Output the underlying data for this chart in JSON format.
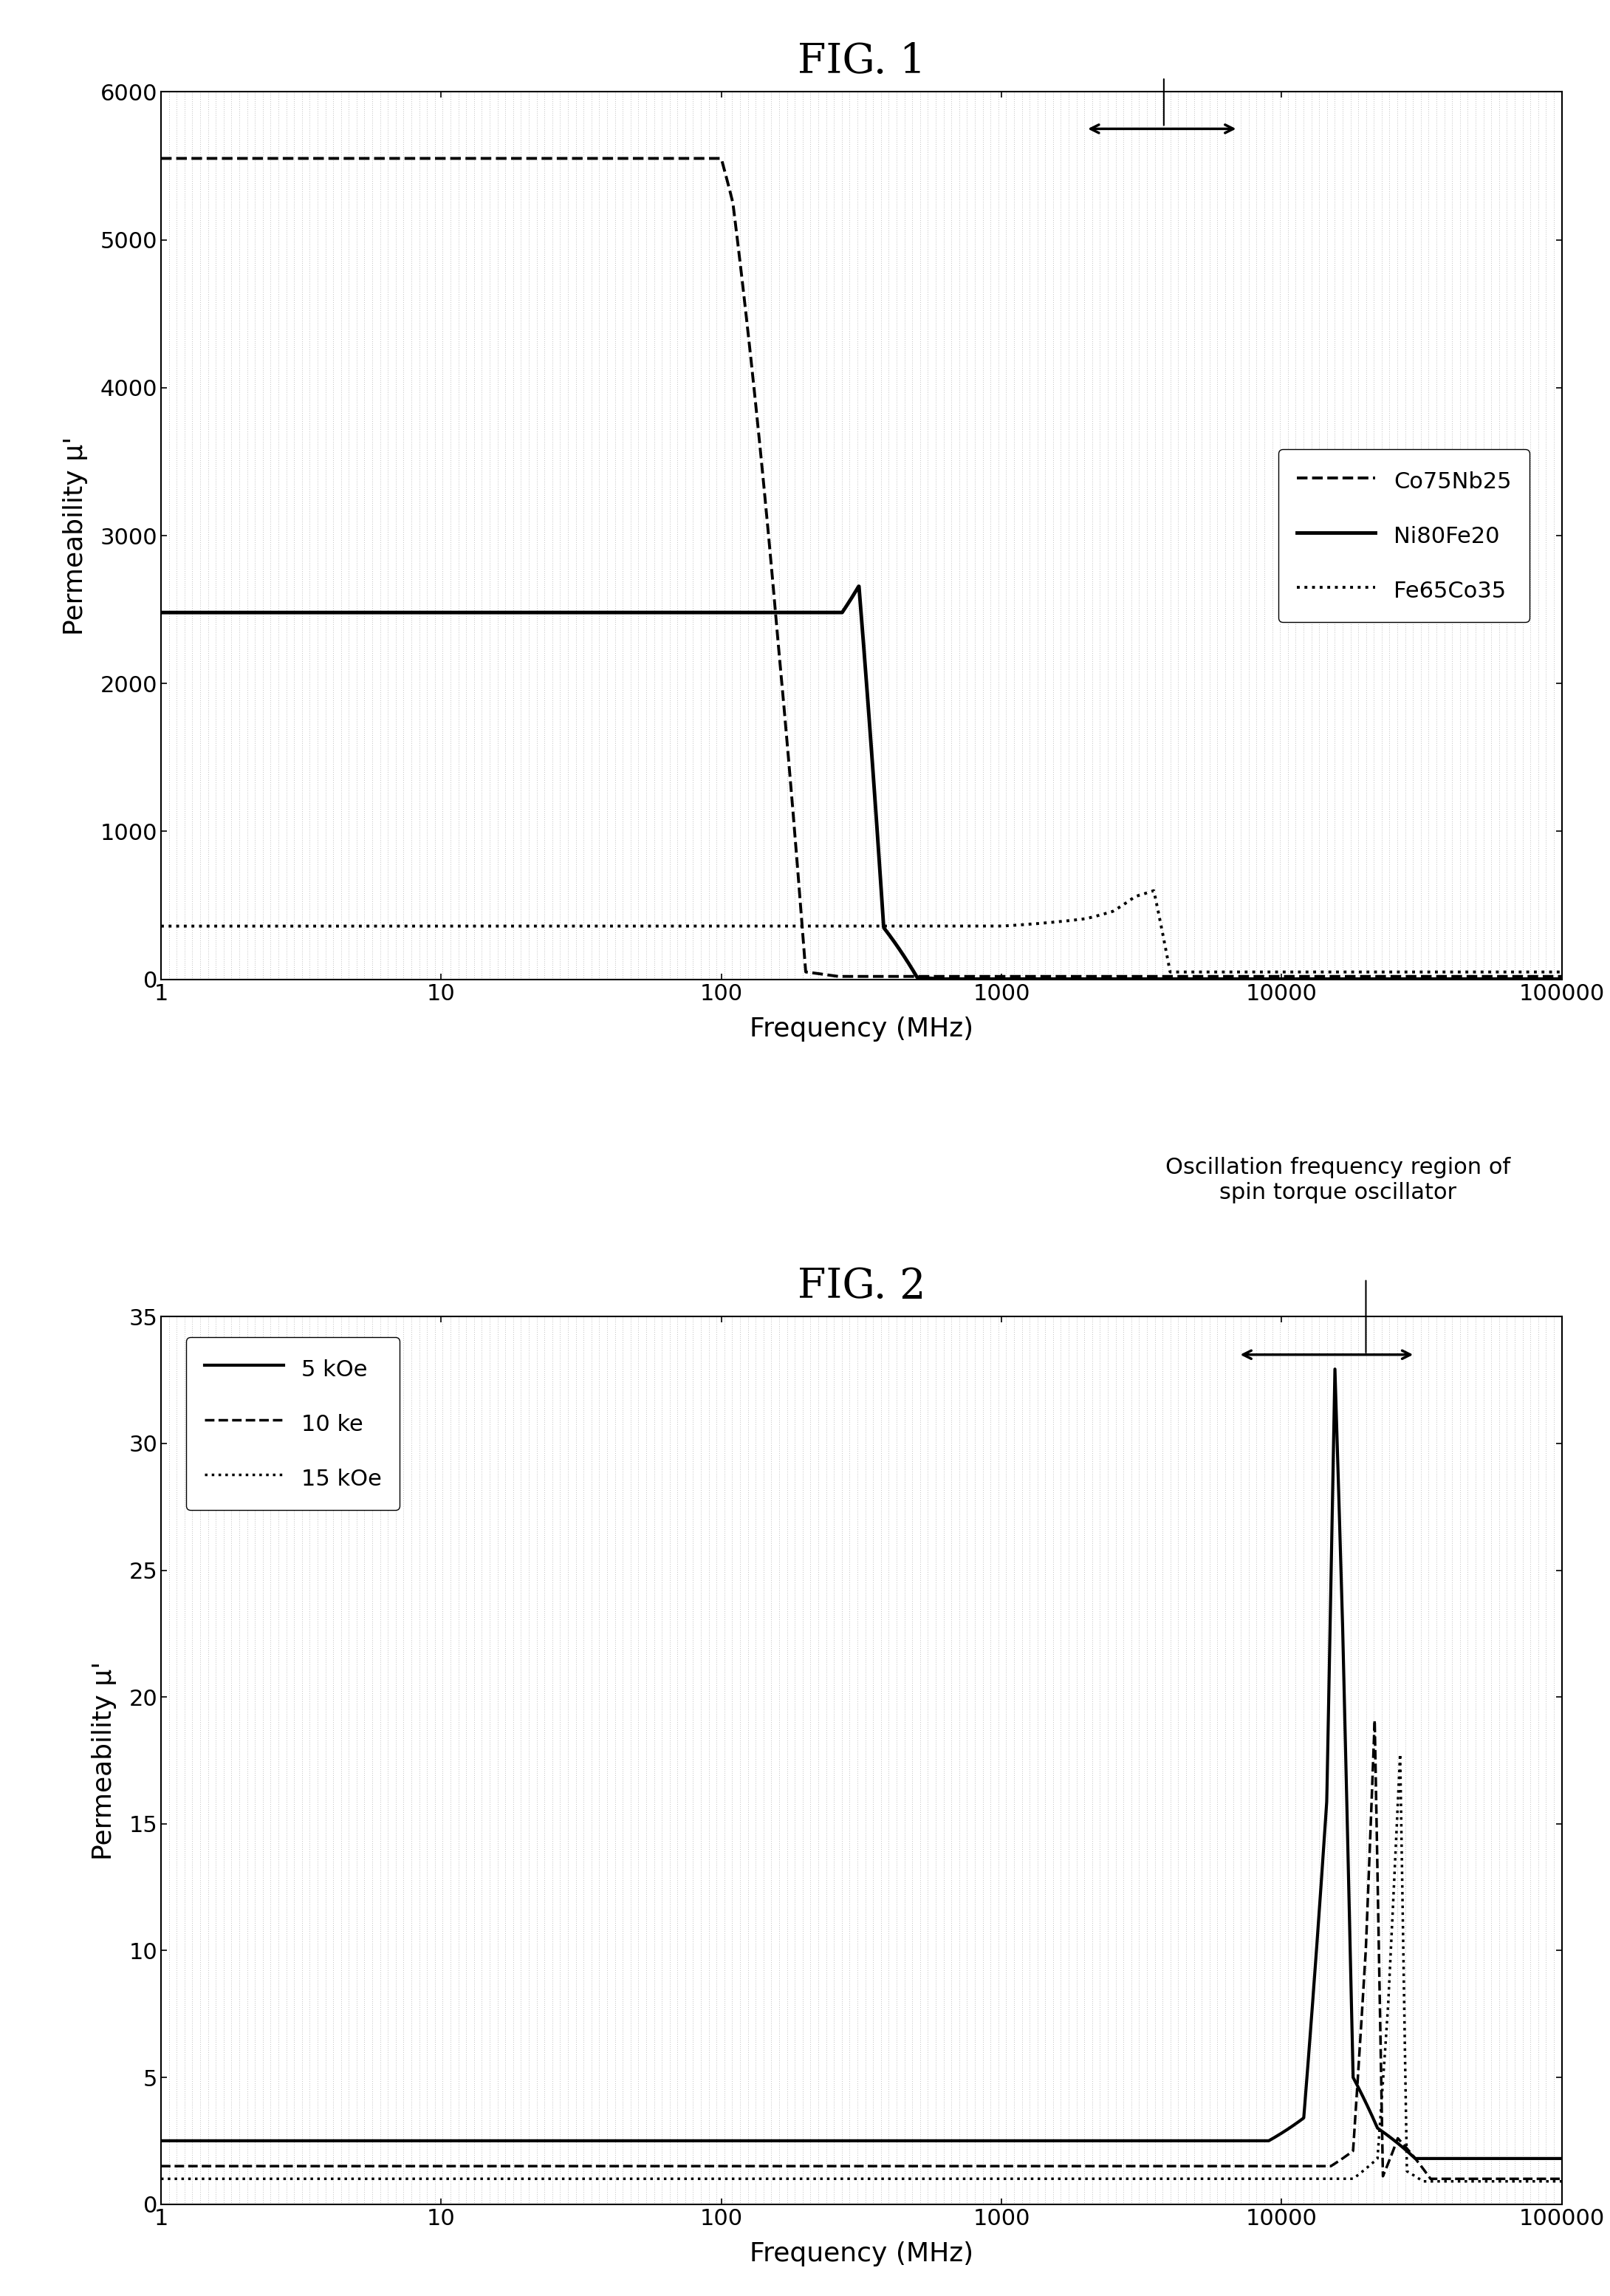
{
  "fig1_title": "FIG. 1",
  "fig2_title": "FIG. 2",
  "fig1_annotation": "Oscillation frequency region of\nspin torque oscillator",
  "fig2_annotation": "Oscillation frequency region of\nspin torque oscillator",
  "fig1_xlabel": "Frequency (MHz)",
  "fig1_ylabel": "Permeability μ'",
  "fig2_xlabel": "Frequency (MHz)",
  "fig2_ylabel": "Permeability μ'",
  "fig1_ylim": [
    0,
    6000
  ],
  "fig1_yticks": [
    0,
    1000,
    2000,
    3000,
    4000,
    5000,
    6000
  ],
  "fig2_ylim": [
    0,
    35
  ],
  "fig2_yticks": [
    0,
    5,
    10,
    15,
    20,
    25,
    30,
    35
  ],
  "fig1_legend": [
    "Co75Nb25",
    "Ni80Fe20",
    "Fe65Co35"
  ],
  "fig2_legend": [
    "5 kOe",
    "10 ke",
    "15 kOe"
  ],
  "background_color": "#ffffff",
  "title_fontsize": 40,
  "label_fontsize": 26,
  "tick_fontsize": 22,
  "legend_fontsize": 22,
  "annotation_fontsize": 22
}
